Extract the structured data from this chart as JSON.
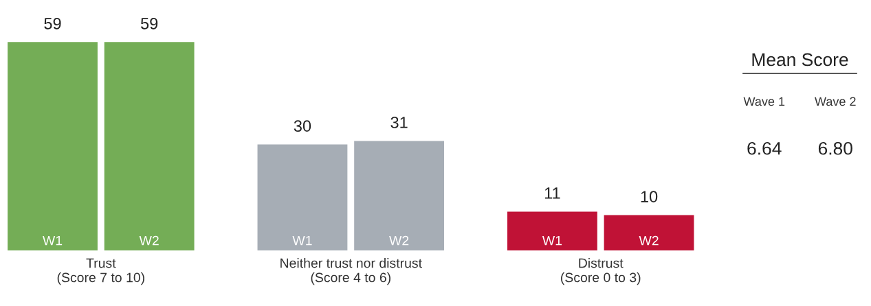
{
  "chart_data": [
    {
      "type": "bar",
      "categories": [
        "Trust\n(Score 7 to 10)",
        "Neither trust nor distrust\n(Score 4 to 6)",
        "Distrust\n(Score 0 to 3)"
      ],
      "series": [
        {
          "name": "W1",
          "colors": [
            "#74ad56",
            "#a6adb5",
            "#c01236"
          ],
          "values": [
            59,
            30,
            11
          ]
        },
        {
          "name": "W2",
          "colors": [
            "#74ad56",
            "#a6adb5",
            "#c01236"
          ],
          "values": [
            59,
            31,
            10
          ]
        }
      ],
      "data_labels": true,
      "grid": false,
      "legend": false
    },
    {
      "type": "other",
      "title": "Mean Score",
      "categories": [
        "Wave 1",
        "Wave 2"
      ],
      "annotations": [
        "6.64",
        "6.80"
      ]
    }
  ]
}
